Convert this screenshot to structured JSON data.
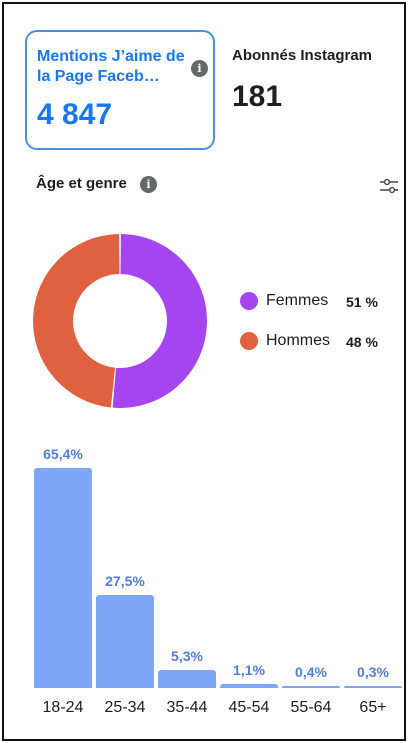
{
  "facebook_card": {
    "title": "Mentions J’aime de la Page Faceb…",
    "value": "4 847",
    "info_icon": "info-icon"
  },
  "instagram_card": {
    "title": "Abonnés Instagram",
    "value": "181"
  },
  "section": {
    "title": "Âge et genre",
    "info_icon": "info-icon",
    "filter_icon": "filter-sliders-icon"
  },
  "gender": {
    "items": [
      {
        "label": "Femmes",
        "pct": "51 %",
        "value": 51,
        "color": "#a445f0"
      },
      {
        "label": "Hommes",
        "pct": "48 %",
        "value": 48,
        "color": "#e0613f"
      }
    ]
  },
  "chart_data": {
    "type": "bar",
    "categories": [
      "18-24",
      "25-34",
      "35-44",
      "45-54",
      "55-64",
      "65+"
    ],
    "values": [
      65.4,
      27.5,
      5.3,
      1.1,
      0.4,
      0.3
    ],
    "data_labels": [
      "65,4%",
      "27,5%",
      "5,3%",
      "1,1%",
      "0,4%",
      "0,3%"
    ],
    "color": "#7da7f6"
  }
}
